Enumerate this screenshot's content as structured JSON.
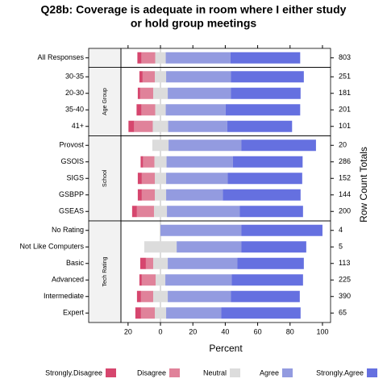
{
  "chart_data": {
    "type": "likert",
    "title": [
      "Q28b: Coverage is adequate in room where I either study",
      "or hold group meetings"
    ],
    "xlabel": "Percent",
    "y2label": "Row Count Totals",
    "xlim": [
      -24.4,
      105
    ],
    "xticks": [
      {
        "value": -20,
        "label": "20"
      },
      0,
      20,
      40,
      60,
      80,
      100
    ],
    "series": [
      {
        "name": "Strongly.Disagree",
        "color": "#d6466e"
      },
      {
        "name": "Disagree",
        "color": "#e0829a"
      },
      {
        "name": "Neutral",
        "color": "#dcdcdc"
      },
      {
        "name": "Agree",
        "color": "#939be0"
      },
      {
        "name": "Strongly.Agree",
        "color": "#6570e0"
      }
    ],
    "panels": [
      {
        "categories": [
          "All Responses"
        ],
        "totals": [
          803
        ],
        "values": [
          [
            2.5,
            8.5,
            6.5,
            40,
            43
          ]
        ]
      },
      {
        "label": "Age Group",
        "categories": [
          "30-35",
          "20-30",
          "35-40",
          "41+"
        ],
        "totals": [
          251,
          181,
          201,
          101
        ],
        "values": [
          [
            2,
            7.5,
            7,
            40,
            45
          ],
          [
            1.5,
            8,
            9,
            39,
            43
          ],
          [
            3,
            8.5,
            6.5,
            37,
            46
          ],
          [
            3.5,
            11.5,
            9.5,
            36.5,
            40
          ]
        ]
      },
      {
        "label": "School",
        "categories": [
          "Provost",
          "GSOIS",
          "SIGS",
          "GSBPP",
          "GSEAS"
        ],
        "totals": [
          20,
          286,
          152,
          144,
          200
        ],
        "values": [
          [
            0,
            0,
            10,
            45,
            46
          ],
          [
            1.5,
            7,
            7.5,
            41,
            43
          ],
          [
            2.5,
            8,
            7,
            38,
            46
          ],
          [
            2.5,
            8,
            7,
            35,
            48
          ],
          [
            3,
            10.5,
            8,
            45,
            39
          ]
        ]
      },
      {
        "label": "Tech Rating",
        "categories": [
          "No Rating",
          "Not Like Computers",
          "Basic",
          "Advanced",
          "Intermediate",
          "Expert"
        ],
        "totals": [
          4,
          5,
          113,
          225,
          390,
          65
        ],
        "values": [
          [
            0,
            0,
            0,
            50,
            50
          ],
          [
            0,
            0,
            20,
            40,
            40
          ],
          [
            3.5,
            4.5,
            9,
            43,
            41
          ],
          [
            1.5,
            8.5,
            6,
            41,
            44
          ],
          [
            2.5,
            7.5,
            9,
            39,
            42.5
          ],
          [
            3.5,
            8.5,
            7,
            34,
            49
          ]
        ]
      }
    ]
  }
}
